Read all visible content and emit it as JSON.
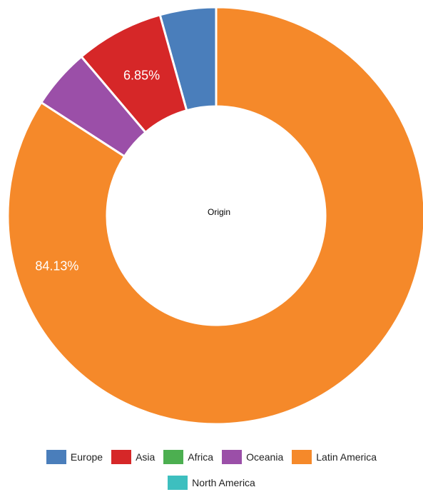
{
  "chart_data": {
    "type": "pie",
    "donut": true,
    "center_text": "Origin",
    "categories": [
      "Europe",
      "Asia",
      "Africa",
      "Oceania",
      "Latin America",
      "North America"
    ],
    "values": [
      4.35,
      6.85,
      0.0,
      4.67,
      84.13,
      0.0
    ],
    "slice_labels": [
      "",
      "6.85%",
      "",
      "",
      "84.13%",
      ""
    ],
    "colors": [
      "#4a7ebb",
      "#d62728",
      "#4caf50",
      "#9b4fa8",
      "#f5892a",
      "#3dbfbf"
    ],
    "legend_position": "bottom",
    "start_angle_deg": 270
  }
}
